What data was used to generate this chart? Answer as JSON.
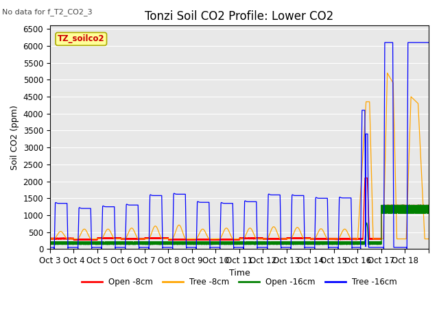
{
  "title": "Tonzi Soil CO2 Profile: Lower CO2",
  "no_data_text": "No data for f_T2_CO2_3",
  "ylabel": "Soil CO2 (ppm)",
  "xlabel": "Time",
  "ylim": [
    0,
    6600
  ],
  "yticks": [
    0,
    500,
    1000,
    1500,
    2000,
    2500,
    3000,
    3500,
    4000,
    4500,
    5000,
    5500,
    6000,
    6500
  ],
  "xtick_labels": [
    "Oct 3",
    "Oct 4",
    "Oct 5",
    "Oct 6",
    "Oct 7",
    "Oct 8",
    "Oct 9",
    "Oct 10",
    "Oct 11",
    "Oct 12",
    "Oct 13",
    "Oct 14",
    "Oct 15",
    "Oct 16",
    "Oct 17",
    "Oct 18"
  ],
  "legend_entries": [
    "Open -8cm",
    "Tree -8cm",
    "Open -16cm",
    "Tree -16cm"
  ],
  "box_label": "TZ_soilco2",
  "box_color": "#ffff99",
  "box_text_color": "#cc0000",
  "bg_color": "#e8e8e8",
  "title_fontsize": 12,
  "label_fontsize": 9,
  "tick_fontsize": 8.5,
  "figsize": [
    6.4,
    4.8
  ],
  "dpi": 100
}
